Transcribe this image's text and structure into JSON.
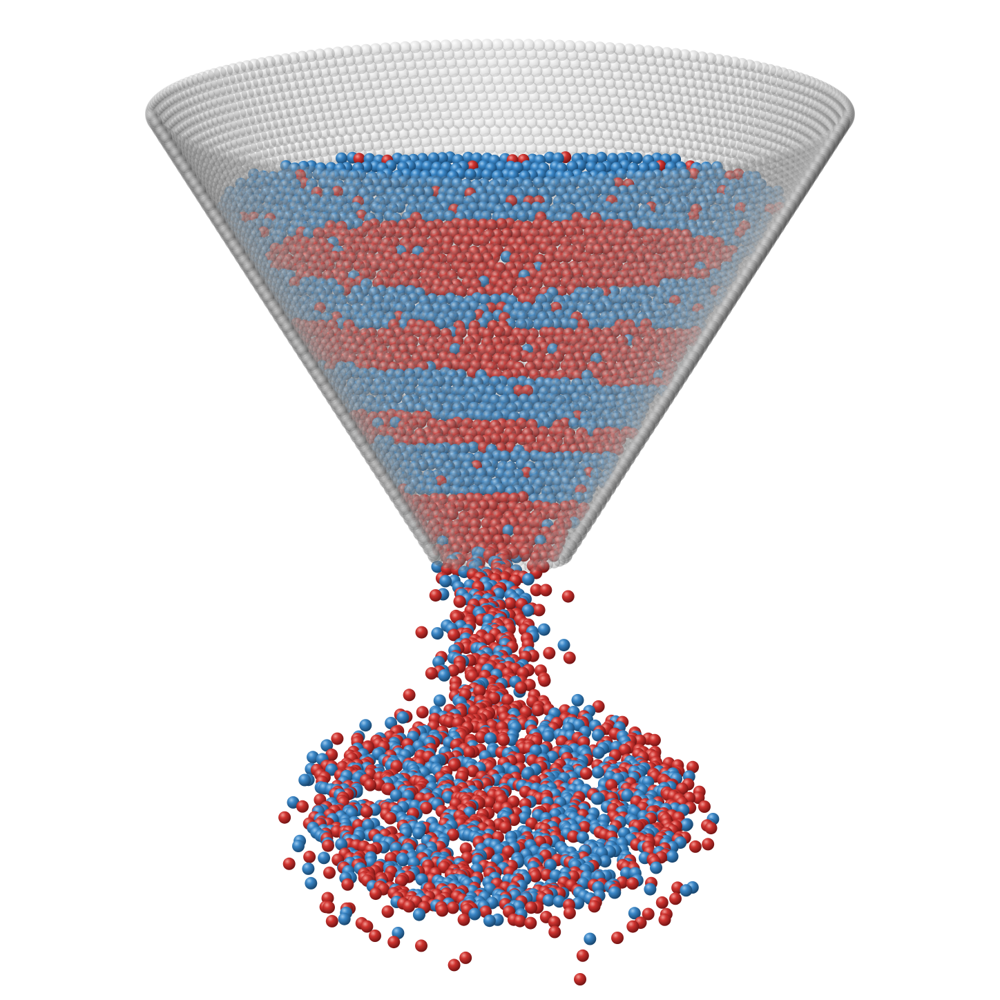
{
  "scene": {
    "subject": "granular-hopper-discharge",
    "colors": {
      "background": "#ffffff",
      "hopper_wall": "#8a8a8a",
      "hopper_wall_dark": "#2a2a2a",
      "particle_blue": "#2f77b5",
      "particle_red": "#c0282a"
    },
    "layers": {
      "stripe_pattern": [
        "blue",
        "red",
        "blue",
        "red",
        "blue",
        "red"
      ],
      "top_surface_core": "red"
    }
  }
}
